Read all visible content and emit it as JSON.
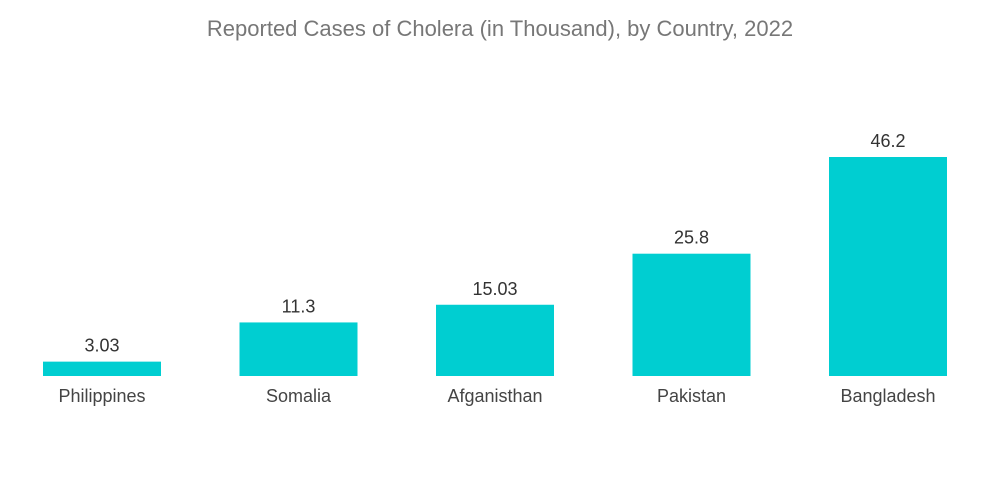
{
  "chart_data": {
    "type": "bar",
    "title": "Reported Cases of Cholera (in Thousand), by Country, 2022",
    "categories": [
      "Philippines",
      "Somalia",
      "Afganisthan",
      "Pakistan",
      "Bangladesh"
    ],
    "values": [
      3.03,
      11.3,
      15.03,
      25.8,
      46.2
    ],
    "value_labels": [
      "3.03",
      "11.3",
      "15.03",
      "25.8",
      "46.2"
    ],
    "ylim": [
      0,
      46.2
    ],
    "grid": false,
    "legend": "none",
    "colors": {
      "bar": "#00CED1"
    }
  }
}
